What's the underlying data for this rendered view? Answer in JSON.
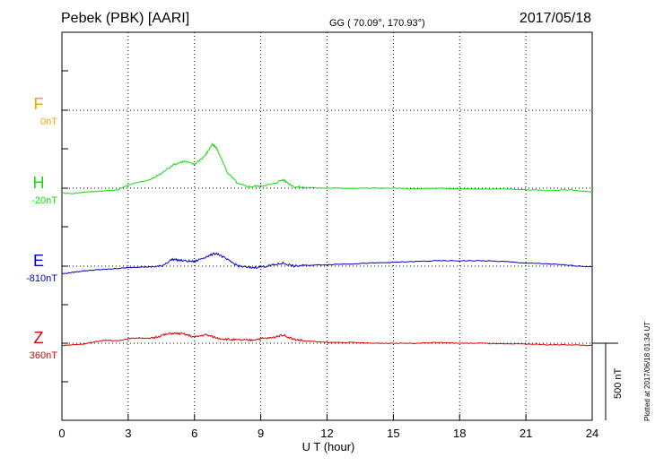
{
  "header": {
    "station": "Pebek (PBK)  [AARI]",
    "coords": "GG ( 70.09°, 170.93°)",
    "date": "2017/05/18"
  },
  "chart_data": {
    "type": "line",
    "xlabel": "U T (hour)",
    "xlim": [
      0,
      24
    ],
    "xticks": [
      0,
      3,
      6,
      9,
      12,
      15,
      18,
      21,
      24
    ],
    "grid": true,
    "scale_bar_label": "500 nT",
    "plotted_note": "Plotted at 2017/06/18 01:34 UT",
    "channels": [
      {
        "name": "F",
        "baseline_label": "0nT",
        "color": "#f5a300",
        "values": []
      },
      {
        "name": "H",
        "baseline_label": "-20nT",
        "color": "#11dd11",
        "x": [
          0,
          0.5,
          1,
          1.5,
          2,
          2.5,
          3,
          3.5,
          4,
          4.5,
          5,
          5.5,
          6,
          6.5,
          6.8,
          7,
          7.5,
          8,
          8.5,
          9,
          9.5,
          10,
          10.5,
          11,
          12,
          13,
          14,
          15,
          16,
          17,
          18,
          19,
          20,
          21,
          22,
          23,
          24
        ],
        "values": [
          -30,
          -35,
          -25,
          -22,
          -15,
          -12,
          20,
          40,
          55,
          95,
          150,
          175,
          155,
          215,
          285,
          260,
          100,
          25,
          10,
          15,
          25,
          55,
          10,
          5,
          0,
          0,
          0,
          0,
          -5,
          0,
          -5,
          -5,
          -5,
          -10,
          -15,
          -10,
          -25
        ]
      },
      {
        "name": "E",
        "baseline_label": "-810nT",
        "color": "#0000cc",
        "x": [
          0,
          0.5,
          1,
          1.5,
          2,
          2.5,
          3,
          3.5,
          4,
          4.5,
          5,
          5.5,
          6,
          6.5,
          7,
          7.5,
          8,
          8.5,
          9,
          9.5,
          10,
          10.5,
          11,
          12,
          13,
          14,
          15,
          16,
          17,
          18,
          19,
          20,
          21,
          22,
          23,
          24
        ],
        "values": [
          -50,
          -40,
          -30,
          -25,
          -20,
          -15,
          -10,
          -5,
          -5,
          0,
          45,
          35,
          30,
          60,
          85,
          40,
          0,
          -10,
          -5,
          5,
          20,
          0,
          5,
          10,
          15,
          20,
          25,
          30,
          35,
          35,
          35,
          30,
          20,
          15,
          5,
          -5
        ]
      },
      {
        "name": "Z",
        "baseline_label": "360nT",
        "color": "#dd0000",
        "x": [
          0,
          0.5,
          1,
          1.5,
          2,
          2.5,
          3,
          3.5,
          4,
          4.5,
          5,
          5.5,
          6,
          6.5,
          7,
          7.5,
          8,
          8.5,
          9,
          9.5,
          10,
          10.5,
          11,
          12,
          13,
          14,
          15,
          16,
          17,
          18,
          19,
          20,
          21,
          22,
          23,
          24
        ],
        "values": [
          -15,
          -10,
          -5,
          10,
          20,
          15,
          30,
          35,
          30,
          50,
          65,
          60,
          40,
          55,
          35,
          25,
          20,
          20,
          30,
          35,
          55,
          25,
          15,
          5,
          5,
          0,
          0,
          0,
          5,
          0,
          0,
          -5,
          -5,
          -10,
          -10,
          -15
        ]
      }
    ]
  }
}
